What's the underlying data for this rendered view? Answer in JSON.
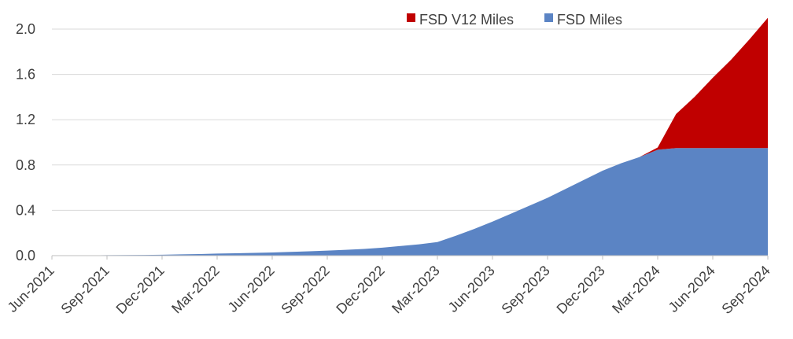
{
  "chart_data": {
    "type": "area",
    "stacked": true,
    "title": "",
    "xlabel": "",
    "ylabel": "",
    "ylim": [
      0,
      2.0
    ],
    "yticks": [
      "0.0",
      "0.4",
      "0.8",
      "1.2",
      "1.6",
      "2.0"
    ],
    "grid": true,
    "legend_position": "top-right",
    "categories": [
      "Jun-2021",
      "Jul-2021",
      "Aug-2021",
      "Sep-2021",
      "Oct-2021",
      "Nov-2021",
      "Dec-2021",
      "Jan-2022",
      "Feb-2022",
      "Mar-2022",
      "Apr-2022",
      "May-2022",
      "Jun-2022",
      "Jul-2022",
      "Aug-2022",
      "Sep-2022",
      "Oct-2022",
      "Nov-2022",
      "Dec-2022",
      "Jan-2023",
      "Feb-2023",
      "Mar-2023",
      "Apr-2023",
      "May-2023",
      "Jun-2023",
      "Jul-2023",
      "Aug-2023",
      "Sep-2023",
      "Oct-2023",
      "Nov-2023",
      "Dec-2023",
      "Jan-2024",
      "Feb-2024",
      "Mar-2024",
      "Apr-2024",
      "May-2024",
      "Jun-2024",
      "Jul-2024",
      "Aug-2024",
      "Sep-2024"
    ],
    "x_tick_labels": [
      "Jun-2021",
      "Sep-2021",
      "Dec-2021",
      "Mar-2022",
      "Jun-2022",
      "Sep-2022",
      "Dec-2022",
      "Mar-2023",
      "Jun-2023",
      "Sep-2023",
      "Dec-2023",
      "Mar-2024",
      "Jun-2024",
      "Sep-2024"
    ],
    "series": [
      {
        "name": "FSD Miles",
        "color": "#5b84c4",
        "values": [
          0.003,
          0.003,
          0.003,
          0.004,
          0.005,
          0.006,
          0.008,
          0.011,
          0.014,
          0.018,
          0.021,
          0.024,
          0.028,
          0.033,
          0.038,
          0.044,
          0.051,
          0.059,
          0.07,
          0.085,
          0.1,
          0.12,
          0.175,
          0.235,
          0.3,
          0.37,
          0.44,
          0.51,
          0.59,
          0.67,
          0.75,
          0.815,
          0.87,
          0.935,
          0.95,
          0.95,
          0.95,
          0.95,
          0.95,
          0.95
        ]
      },
      {
        "name": "FSD V12 Miles",
        "color": "#c00000",
        "values": [
          0,
          0,
          0,
          0,
          0,
          0,
          0,
          0,
          0,
          0,
          0,
          0,
          0,
          0,
          0,
          0,
          0,
          0,
          0,
          0,
          0,
          0,
          0,
          0,
          0,
          0,
          0,
          0,
          0,
          0,
          0,
          0,
          0,
          0.02,
          0.3,
          0.45,
          0.62,
          0.78,
          0.96,
          1.15
        ]
      }
    ],
    "legend_order": [
      "FSD V12 Miles",
      "FSD Miles"
    ]
  }
}
